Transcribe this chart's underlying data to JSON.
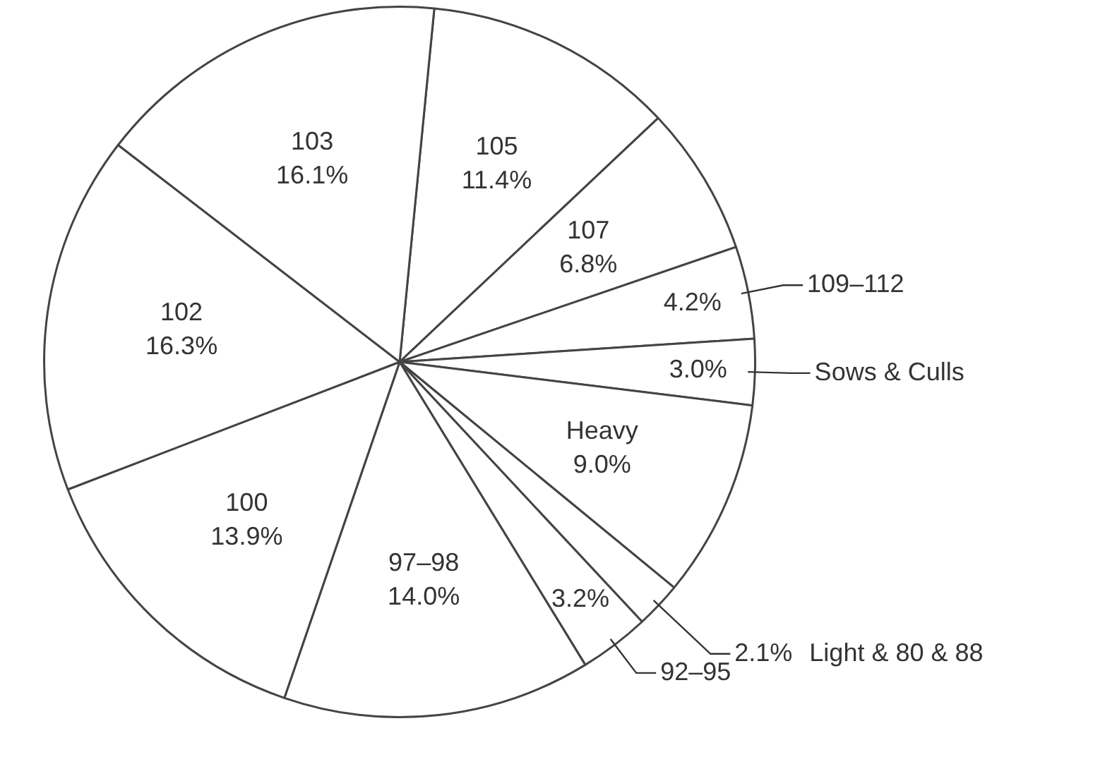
{
  "chart_data": {
    "type": "pie",
    "categories": [
      "105",
      "107",
      "109–112",
      "Sows & Culls",
      "Heavy",
      "Light & 80 & 88",
      "92–95",
      "97–98",
      "100",
      "102",
      "103"
    ],
    "values": [
      11.4,
      6.8,
      4.2,
      3.0,
      9.0,
      2.1,
      3.2,
      14.0,
      13.9,
      16.3,
      16.1
    ],
    "value_labels": [
      "11.4%",
      "6.8%",
      "4.2%",
      "3.0%",
      "9.0%",
      "2.1%",
      "3.2%",
      "14.0%",
      "13.9%",
      "16.3%",
      "16.1%"
    ],
    "colors": [
      "#ffffff",
      "#ffffff",
      "#ffffff",
      "#ffffff",
      "#ffffff",
      "#ffffff",
      "#ffffff",
      "#ffffff",
      "#ffffff",
      "#ffffff",
      "#ffffff"
    ]
  }
}
